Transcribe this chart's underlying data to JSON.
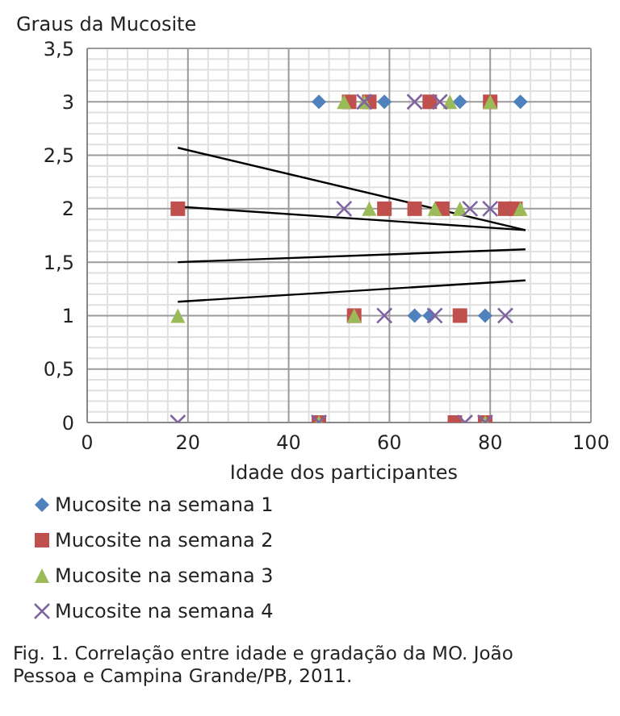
{
  "chart_data": {
    "type": "scatter",
    "ylabel": "Graus da Mucosite",
    "xlabel": "Idade dos participantes",
    "annotations": [
      "Fig. 1. Correlação entre idade e gradação da MO. João Pessoa e Campina  Grande/PB, 2011."
    ],
    "series": [
      {
        "name": "Mucosite na semana 1",
        "color": "#4f81bd",
        "marker": "diamond",
        "x": [
          46,
          59,
          74,
          86,
          65,
          68,
          79
        ],
        "values": [
          3,
          3,
          3,
          3,
          1,
          1,
          1
        ]
      },
      {
        "name": "Mucosite na semana 2",
        "color": "#c0504d",
        "marker": "square",
        "x": [
          52,
          56,
          68,
          80,
          18,
          59,
          65,
          70.5,
          83,
          85,
          53,
          74,
          46,
          73,
          79
        ],
        "values": [
          3,
          3,
          3,
          3,
          2,
          2,
          2,
          2,
          2,
          2,
          1,
          1,
          0,
          0,
          0
        ]
      },
      {
        "name": "Mucosite na semana 3",
        "color": "#9bbb59",
        "marker": "triangle",
        "x": [
          51,
          55,
          72,
          80,
          56,
          69,
          74,
          86,
          18,
          53,
          46,
          79
        ],
        "values": [
          3,
          3,
          3,
          3,
          2,
          2,
          2,
          2,
          1,
          1,
          0,
          0
        ]
      },
      {
        "name": "Mucosite na semana 4",
        "color": "#8064a2",
        "marker": "cross",
        "x": [
          55,
          65,
          70,
          51,
          76,
          80,
          59,
          69,
          83,
          18,
          46,
          75,
          79
        ],
        "values": [
          3,
          3,
          3,
          2,
          2,
          2,
          1,
          1,
          1,
          0,
          0,
          0,
          0
        ]
      },
      {
        "type": "line",
        "color": "#000000",
        "x": [
          18,
          87
        ],
        "values": [
          2.57,
          1.8
        ]
      },
      {
        "type": "line",
        "color": "#000000",
        "x": [
          18,
          87
        ],
        "values": [
          2.02,
          1.8
        ]
      },
      {
        "type": "line",
        "color": "#000000",
        "x": [
          18,
          87
        ],
        "values": [
          1.5,
          1.62
        ]
      },
      {
        "type": "line",
        "color": "#000000",
        "x": [
          18,
          87
        ],
        "values": [
          1.13,
          1.33
        ]
      }
    ],
    "xlim": [
      0,
      100
    ],
    "xticks": [
      0,
      20,
      40,
      60,
      80,
      100
    ],
    "ylim": [
      0,
      3.5
    ],
    "yticks": [
      0,
      {
        "value": 0.5,
        "label": "0,5"
      },
      1,
      {
        "value": 1.5,
        "label": "1,5"
      },
      2,
      {
        "value": 2.5,
        "label": "2,5"
      },
      3,
      {
        "value": 3.5,
        "label": "3,5"
      }
    ],
    "grid": true,
    "legend": "bottom"
  }
}
